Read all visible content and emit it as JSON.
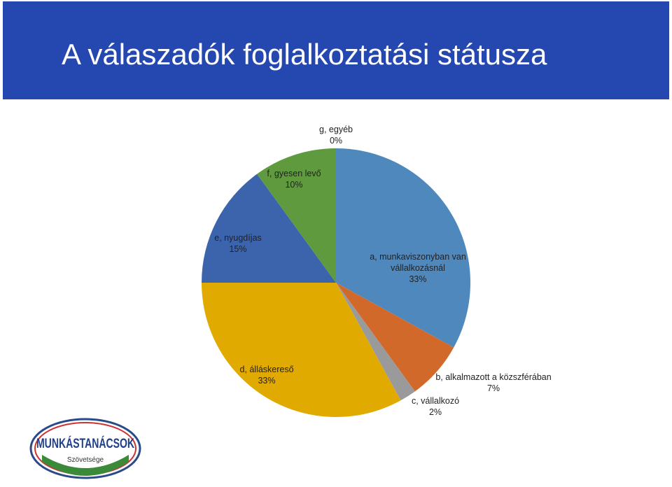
{
  "chart_data": {
    "type": "pie",
    "title": "A válaszadók foglalkoztatási státusza",
    "categories": [
      "a, munkaviszonyban van vállalkozásnál",
      "b, alkalmazott a közszférában",
      "c, vállalkozó",
      "d, álláskereső",
      "e, nyugdíjas",
      "f, gyesen levő",
      "g, egyéb"
    ],
    "values": [
      33,
      7,
      2,
      33,
      15,
      10,
      0
    ],
    "value_labels": [
      "33%",
      "7%",
      "2%",
      "33%",
      "15%",
      "10%",
      "0%"
    ],
    "colors": [
      "#4f88bd",
      "#d1692a",
      "#9a9a9a",
      "#e1aa00",
      "#3c64ad",
      "#5f9a3e",
      "#8064a2"
    ]
  },
  "logo": {
    "text": "MUNKÁSTANÁCSOK",
    "subtitle": "Szövetsége"
  }
}
